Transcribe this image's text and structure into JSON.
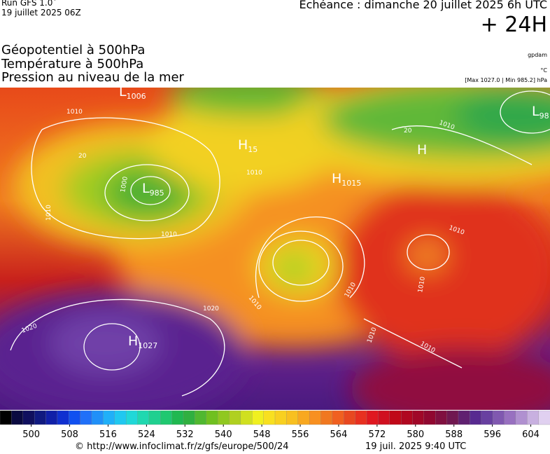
{
  "header": {
    "run": "Run GFS 1.0˚",
    "run_date": "19 juillet 2025 06Z",
    "valid": "Echéance : dimanche 20 juillet 2025 6h UTC",
    "lead": "+ 24H",
    "fields": [
      "Géopotentiel à 500hPa",
      "Température à 500hPa",
      "Pression au niveau de la mer"
    ],
    "units": [
      "gpdam",
      "°C",
      "[Max 1027.0 | Min 985.2] hPa"
    ]
  },
  "map": {
    "centers": [
      {
        "letter": "L",
        "value": "1006"
      },
      {
        "letter": "H",
        "value": "15"
      },
      {
        "letter": "L",
        "value": "985"
      },
      {
        "letter": "H",
        "value": "1015"
      },
      {
        "letter": "H"
      },
      {
        "letter": "L",
        "value": "98"
      },
      {
        "letter": "H",
        "value": "1027"
      }
    ],
    "contour_labels": [
      "1010",
      "1000",
      "1010",
      "1010",
      "1010",
      "1010",
      "1020",
      "1020",
      "1010",
      "1010",
      "1010",
      "1010",
      "1010",
      "1010",
      "20",
      "20"
    ]
  },
  "colorbar": {
    "ticks": [
      500,
      508,
      516,
      524,
      532,
      540,
      548,
      556,
      564,
      572,
      580,
      588,
      596,
      604
    ],
    "lim": [
      493.5,
      608
    ],
    "colors": [
      "#000000",
      "#0a0a40",
      "#10105e",
      "#101a80",
      "#1020a8",
      "#1030d0",
      "#1050f0",
      "#2070f8",
      "#2090f8",
      "#20b0f8",
      "#20c8f0",
      "#20d8d8",
      "#20d8b0",
      "#20d090",
      "#20c870",
      "#20b850",
      "#30b040",
      "#50b830",
      "#70c020",
      "#90c820",
      "#b0d020",
      "#d0e020",
      "#f0f020",
      "#f8e020",
      "#f8d020",
      "#f8c020",
      "#f8a820",
      "#f89020",
      "#f07820",
      "#f06020",
      "#e84820",
      "#e83020",
      "#e01820",
      "#d01020",
      "#c00818",
      "#b00820",
      "#a00828",
      "#900830",
      "#801040",
      "#701850",
      "#602070",
      "#582a90",
      "#6840a0",
      "#8058b0",
      "#9870c0",
      "#b090d0",
      "#c8b0e0",
      "#e0d0f0"
    ]
  },
  "footer": {
    "source": "© http://www.infoclimat.fr/z/gfs/europe/500/24",
    "stamp": "19 juil. 2025  9:40 UTC"
  }
}
